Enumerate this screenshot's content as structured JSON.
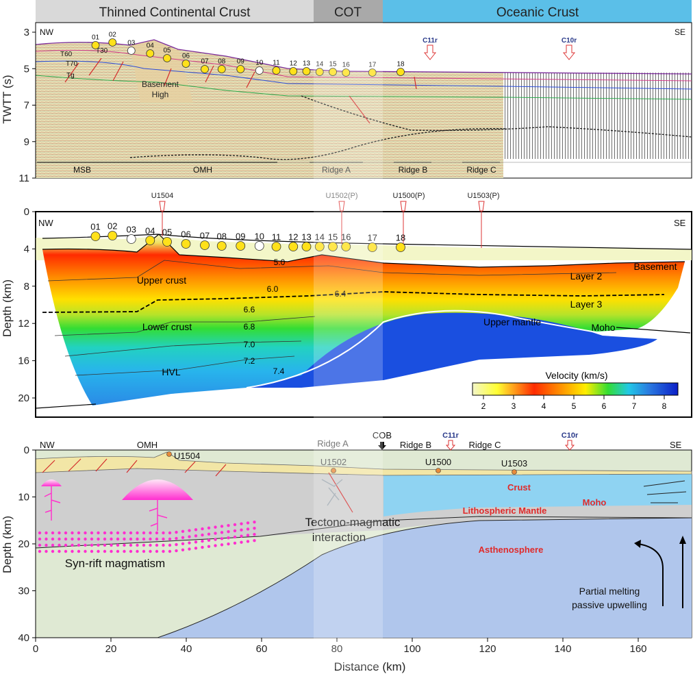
{
  "banner": {
    "continental": "Thinned Continental Crust",
    "cot": "COT",
    "oceanic": "Oceanic Crust",
    "colors": {
      "continental": "#d9d9d9",
      "cot": "#a9a9a9",
      "oceanic": "#5bbfe8"
    }
  },
  "common": {
    "nw": "NW",
    "se": "SE",
    "x_label": "Distance (km)"
  },
  "x_axis": {
    "ticks": [
      "0",
      "20",
      "40",
      "60",
      "80",
      "100",
      "120",
      "140",
      "160"
    ]
  },
  "obs": [
    {
      "id": "01",
      "km": 15,
      "open": false
    },
    {
      "id": "02",
      "km": 19.5,
      "open": false
    },
    {
      "id": "03",
      "km": 24.5,
      "open": true
    },
    {
      "id": "04",
      "km": 29.5,
      "open": false
    },
    {
      "id": "05",
      "km": 34,
      "open": false
    },
    {
      "id": "06",
      "km": 39,
      "open": false
    },
    {
      "id": "07",
      "km": 44,
      "open": false
    },
    {
      "id": "08",
      "km": 48.5,
      "open": false
    },
    {
      "id": "09",
      "km": 53.5,
      "open": false
    },
    {
      "id": "10",
      "km": 58.5,
      "open": true
    },
    {
      "id": "11",
      "km": 63,
      "open": false
    },
    {
      "id": "12",
      "km": 67.5,
      "open": false
    },
    {
      "id": "13",
      "km": 71,
      "open": false
    },
    {
      "id": "14",
      "km": 74.5,
      "open": false
    },
    {
      "id": "15",
      "km": 78,
      "open": false
    },
    {
      "id": "16",
      "km": 81.5,
      "open": false
    },
    {
      "id": "17",
      "km": 88.5,
      "open": false
    },
    {
      "id": "18",
      "km": 96,
      "open": false
    }
  ],
  "seismic": {
    "y_label": "TWTT (s)",
    "y_ticks": [
      "3",
      "5",
      "7",
      "9",
      "11"
    ],
    "magnetic": [
      "C11r",
      "C10r"
    ],
    "horizons": [
      "T30",
      "T60",
      "T70",
      "Tg"
    ],
    "basement_high": [
      "Basement",
      "High"
    ],
    "units": [
      "MSB",
      "OMH",
      "Ridge A",
      "Ridge B",
      "Ridge C"
    ]
  },
  "velocity": {
    "y_label": "Depth (km)",
    "y_ticks": [
      "0",
      "4",
      "8",
      "12",
      "16",
      "20"
    ],
    "wells": [
      "U1504",
      "U1502(P)",
      "U1500(P)",
      "U1503(P)"
    ],
    "layer_labels": [
      "Upper crust",
      "Lower crust",
      "HVL",
      "Layer 2",
      "Layer 3",
      "Upper mantle",
      "Basement",
      "Moho"
    ],
    "contours": [
      "5.0",
      "6.0",
      "6.4",
      "6.6",
      "6.8",
      "7.0",
      "7.2",
      "7.4"
    ],
    "colorbar": {
      "title": "Velocity (km/s)",
      "ticks": [
        "2",
        "3",
        "4",
        "5",
        "6",
        "7",
        "8"
      ],
      "stops": [
        "#f3f6c8",
        "#ffff33",
        "#ff2b00",
        "#ffa500",
        "#ffee00",
        "#33dd33",
        "#22c8e6",
        "#2a7ae0",
        "#0b1fc8"
      ]
    }
  },
  "model": {
    "y_label": "Depth (km)",
    "y_ticks": [
      "0",
      "10",
      "20",
      "30",
      "40"
    ],
    "top_labels": [
      "OMH",
      "Ridge A",
      "COB",
      "Ridge B",
      "C11r",
      "Ridge C",
      "C10r"
    ],
    "wells": [
      "U1504",
      "U1502",
      "U1500",
      "U1503"
    ],
    "layers": [
      "Crust",
      "Moho",
      "Lithospheric Mantle",
      "Asthenosphere"
    ],
    "interaction": [
      "Tectono-magmatic",
      "interaction"
    ],
    "synrift": "Syn-rift magmatism",
    "melting": [
      "Partial melting",
      "passive upwelling"
    ],
    "colors": {
      "litho": "#dfe9d3",
      "astheno": "#b0c6ec",
      "crust": "#cfcfcf",
      "ocean_crust": "#8fd3f2",
      "sediment": "#f2e6a6",
      "magma": "#ff33cc"
    }
  }
}
